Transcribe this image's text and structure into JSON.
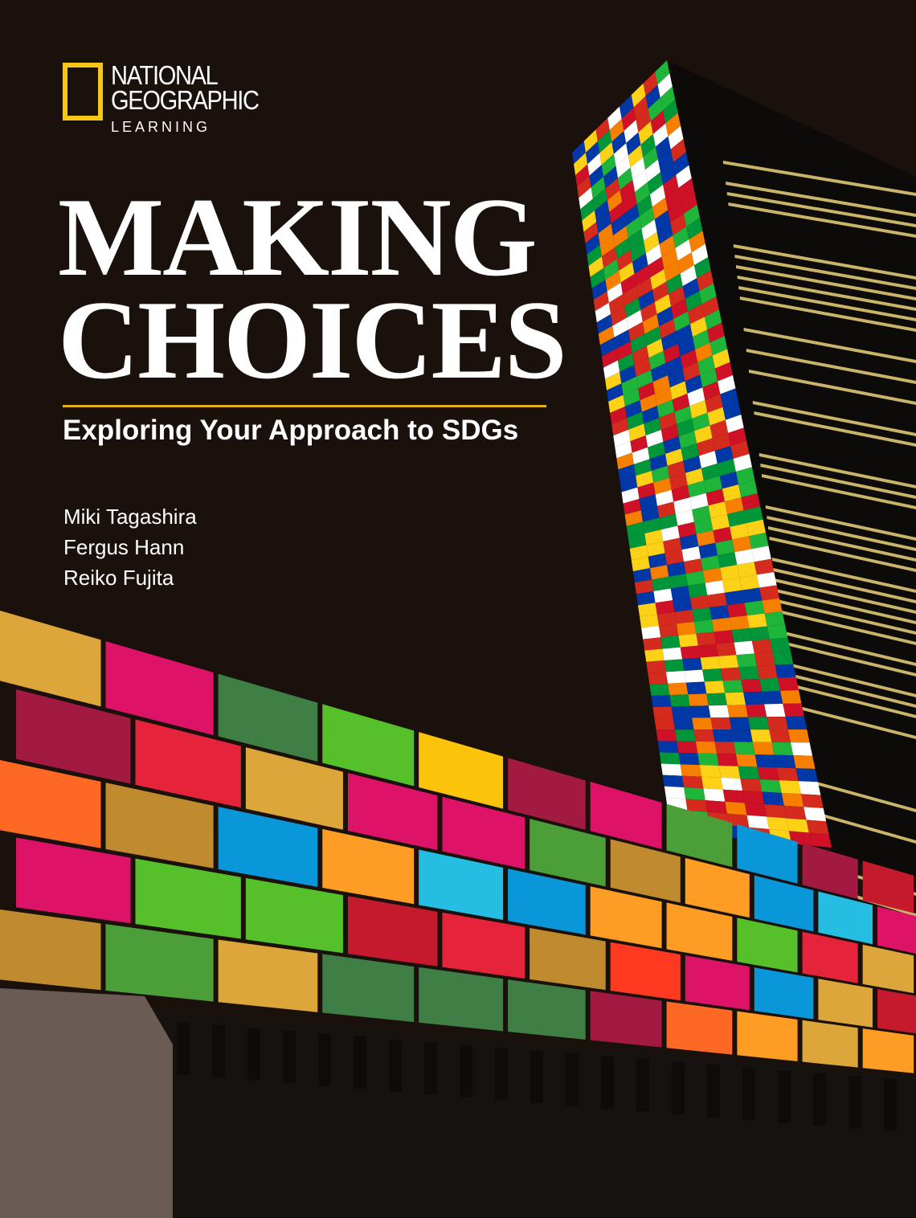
{
  "logo": {
    "line1": "NATIONAL",
    "line2": "GEOGRAPHIC",
    "line3": "LEARNING",
    "color": "#f5c518"
  },
  "title": {
    "line1": "MAKING",
    "line2": "CHOICES"
  },
  "subtitle": "Exploring Your Approach to SDGs",
  "authors": [
    "Miki Tagashira",
    "Fergus Hann",
    "Reiko Fujita"
  ],
  "colors": {
    "background": "#1a100c",
    "accent": "#e3b21b",
    "sdg": [
      "#e5243b",
      "#dda63a",
      "#4c9f38",
      "#c5192d",
      "#ff3a21",
      "#26bde2",
      "#fcc30b",
      "#a21942",
      "#fd6925",
      "#dd1367",
      "#fd9d24",
      "#bf8b2e",
      "#3f7e44",
      "#0a97d9",
      "#56c02b"
    ]
  }
}
